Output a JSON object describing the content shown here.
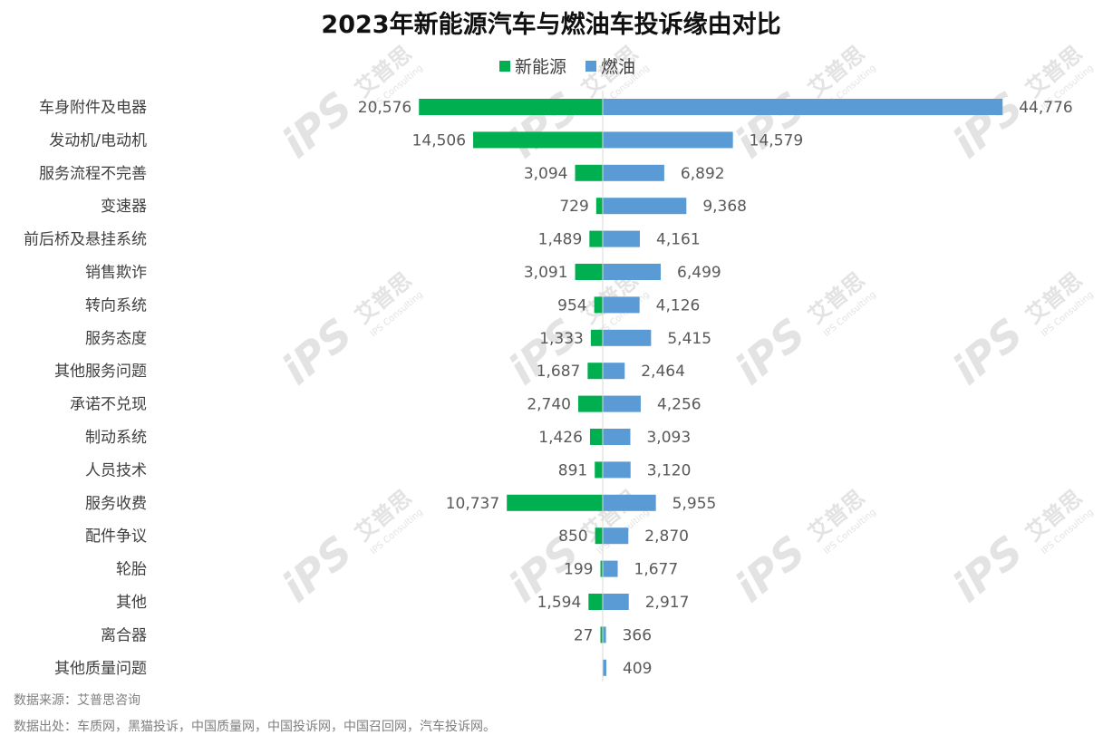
{
  "chart_data": {
    "type": "bar",
    "orientation": "horizontal-diverging",
    "title": "2023年新能源汽车与燃油车投诉缘由对比",
    "legend_position": "top-center",
    "grid": false,
    "categories": [
      "车身附件及电器",
      "发动机/电动机",
      "服务流程不完善",
      "变速器",
      "前后桥及悬挂系统",
      "销售欺诈",
      "转向系统",
      "服务态度",
      "其他服务问题",
      "承诺不兑现",
      "制动系统",
      "人员技术",
      "服务收费",
      "配件争议",
      "轮胎",
      "其他",
      "离合器",
      "其他质量问题"
    ],
    "series": [
      {
        "name": "新能源",
        "color": "#00b050",
        "values": [
          20576,
          14506,
          3094,
          729,
          1489,
          3091,
          954,
          1333,
          1687,
          2740,
          1426,
          891,
          10737,
          850,
          199,
          1594,
          27,
          null
        ]
      },
      {
        "name": "燃油",
        "color": "#5b9bd5",
        "values": [
          44776,
          14579,
          6892,
          9368,
          4161,
          6499,
          4126,
          5415,
          2464,
          4256,
          3093,
          3120,
          5955,
          2870,
          1677,
          2917,
          366,
          409
        ]
      }
    ],
    "value_labels": {
      "新能源": [
        "20,576",
        "14,506",
        "3,094",
        "729",
        "1,489",
        "3,091",
        "954",
        "1,333",
        "1,687",
        "2,740",
        "1,426",
        "891",
        "10,737",
        "850",
        "199",
        "1,594",
        "27",
        ""
      ],
      "燃油": [
        "44,776",
        "14,579",
        "6,892",
        "9,368",
        "4,161",
        "6,499",
        "4,126",
        "5,415",
        "2,464",
        "4,256",
        "3,093",
        "3,120",
        "5,955",
        "2,870",
        "1,677",
        "2,917",
        "366",
        "409"
      ]
    },
    "xlim": [
      -20576,
      44776
    ]
  },
  "footnotes": {
    "source": "数据来源：艾普思咨询",
    "origin": "数据出处：车质网，黑猫投诉，中国质量网，中国投诉网，中国召回网，汽车投诉网。"
  },
  "watermark": {
    "brand": "艾普思",
    "sub": "IPS Consulting",
    "logo": "iPS",
    "color": "#e3e3e3"
  }
}
